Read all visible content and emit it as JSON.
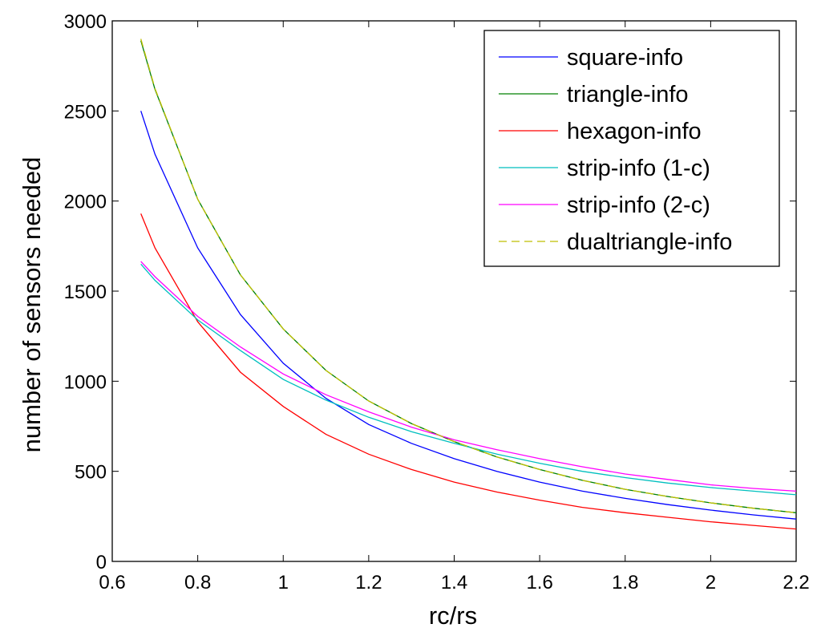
{
  "chart_data": {
    "type": "line",
    "title": "",
    "xlabel": "rc/rs",
    "ylabel": "number of sensors needed",
    "xlim": [
      0.6,
      2.2
    ],
    "ylim": [
      0,
      3000
    ],
    "grid": false,
    "legend_position": "top-right",
    "x_ticks": [
      0.6,
      0.8,
      1,
      1.2,
      1.4,
      1.6,
      1.8,
      2,
      2.2
    ],
    "x_tick_labels": [
      "0.6",
      "0.8",
      "1",
      "1.2",
      "1.4",
      "1.6",
      "1.8",
      "2",
      "2.2"
    ],
    "y_ticks": [
      0,
      500,
      1000,
      1500,
      2000,
      2500,
      3000
    ],
    "y_tick_labels": [
      "0",
      "500",
      "1000",
      "1500",
      "2000",
      "2500",
      "3000"
    ],
    "x": [
      0.667,
      0.7,
      0.8,
      0.9,
      1.0,
      1.1,
      1.2,
      1.3,
      1.4,
      1.5,
      1.6,
      1.7,
      1.8,
      1.9,
      2.0,
      2.1,
      2.2
    ],
    "series": [
      {
        "name": "square-info",
        "color": "#0000ff",
        "dash": "solid",
        "values": [
          2500,
          2260,
          1740,
          1370,
          1100,
          905,
          760,
          655,
          570,
          500,
          440,
          390,
          350,
          315,
          285,
          258,
          235
        ]
      },
      {
        "name": "triangle-info",
        "color": "#008000",
        "dash": "solid",
        "values": [
          2890,
          2620,
          2010,
          1590,
          1290,
          1060,
          890,
          765,
          665,
          580,
          510,
          450,
          400,
          360,
          325,
          295,
          270
        ]
      },
      {
        "name": "hexagon-info",
        "color": "#ff0000",
        "dash": "solid",
        "values": [
          1930,
          1740,
          1330,
          1050,
          860,
          705,
          595,
          510,
          440,
          385,
          340,
          300,
          270,
          245,
          220,
          200,
          180
        ]
      },
      {
        "name": "strip-info (1-c)",
        "color": "#00bfbf",
        "dash": "solid",
        "values": [
          1650,
          1560,
          1340,
          1170,
          1010,
          895,
          800,
          720,
          655,
          595,
          545,
          500,
          465,
          435,
          410,
          390,
          370
        ]
      },
      {
        "name": "strip-info (2-c)",
        "color": "#ff00ff",
        "dash": "solid",
        "values": [
          1665,
          1580,
          1360,
          1190,
          1040,
          925,
          830,
          745,
          675,
          620,
          570,
          525,
          485,
          455,
          425,
          405,
          390
        ]
      },
      {
        "name": "dualtriangle-info",
        "color": "#bfbf00",
        "dash": "dashed",
        "values": [
          2900,
          2625,
          2010,
          1590,
          1290,
          1060,
          890,
          765,
          665,
          580,
          510,
          450,
          400,
          360,
          325,
          295,
          270
        ]
      }
    ]
  }
}
